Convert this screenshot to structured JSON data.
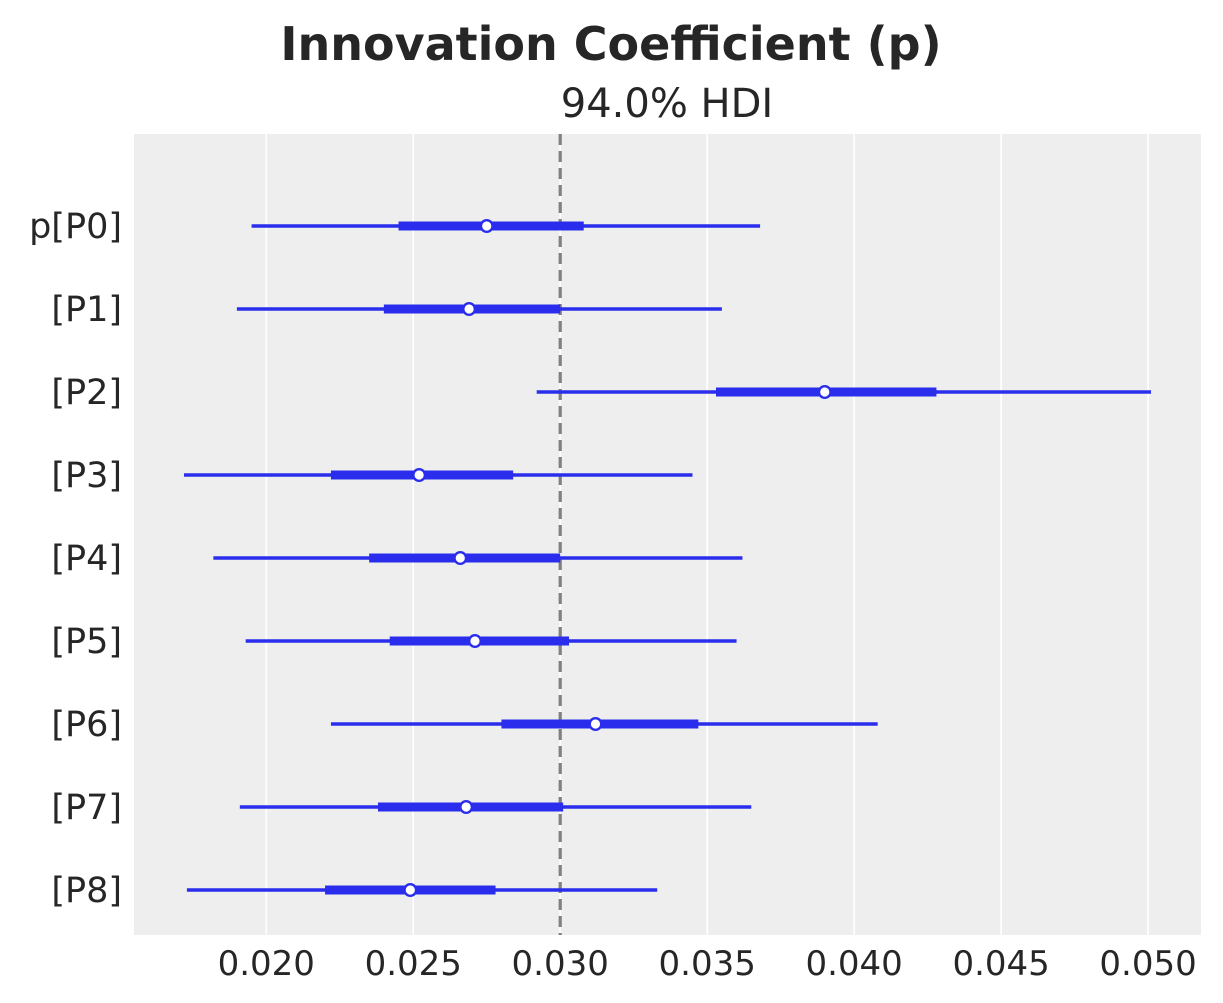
{
  "chart_data": {
    "type": "forest",
    "title": "Innovation Coefficient (p)",
    "subtitle": "94.0% HDI",
    "variable": "p",
    "rows": [
      {
        "label": "p[P0]",
        "hdi_low": 0.0195,
        "iqr_low": 0.0245,
        "median": 0.0275,
        "iqr_high": 0.0308,
        "hdi_high": 0.0368
      },
      {
        "label": "[P1]",
        "hdi_low": 0.019,
        "iqr_low": 0.024,
        "median": 0.0269,
        "iqr_high": 0.03,
        "hdi_high": 0.0355
      },
      {
        "label": "[P2]",
        "hdi_low": 0.0292,
        "iqr_low": 0.0353,
        "median": 0.039,
        "iqr_high": 0.0428,
        "hdi_high": 0.0501
      },
      {
        "label": "[P3]",
        "hdi_low": 0.0172,
        "iqr_low": 0.0222,
        "median": 0.0252,
        "iqr_high": 0.0284,
        "hdi_high": 0.0345
      },
      {
        "label": "[P4]",
        "hdi_low": 0.0182,
        "iqr_low": 0.0235,
        "median": 0.0266,
        "iqr_high": 0.03,
        "hdi_high": 0.0362
      },
      {
        "label": "[P5]",
        "hdi_low": 0.0193,
        "iqr_low": 0.0242,
        "median": 0.0271,
        "iqr_high": 0.0303,
        "hdi_high": 0.036
      },
      {
        "label": "[P6]",
        "hdi_low": 0.0222,
        "iqr_low": 0.028,
        "median": 0.0312,
        "iqr_high": 0.0347,
        "hdi_high": 0.0408
      },
      {
        "label": "[P7]",
        "hdi_low": 0.0191,
        "iqr_low": 0.0238,
        "median": 0.0268,
        "iqr_high": 0.0301,
        "hdi_high": 0.0365
      },
      {
        "label": "[P8]",
        "hdi_low": 0.0173,
        "iqr_low": 0.022,
        "median": 0.0249,
        "iqr_high": 0.0278,
        "hdi_high": 0.0333
      }
    ],
    "reference_line": {
      "x": 0.03,
      "style": "dashed",
      "color": "#808080"
    },
    "xlim": [
      0.0155,
      0.0518
    ],
    "xticks": [
      0.02,
      0.025,
      0.03,
      0.035,
      0.04,
      0.045,
      0.05
    ],
    "xtick_labels": [
      "0.020",
      "0.025",
      "0.030",
      "0.035",
      "0.040",
      "0.045",
      "0.050"
    ],
    "grid": "vertical",
    "colors": {
      "series": "#2a2eec",
      "plot_background": "#eeeeee",
      "grid": "#ffffff",
      "marker_fill": "#ffffff",
      "text": "#262626"
    }
  }
}
